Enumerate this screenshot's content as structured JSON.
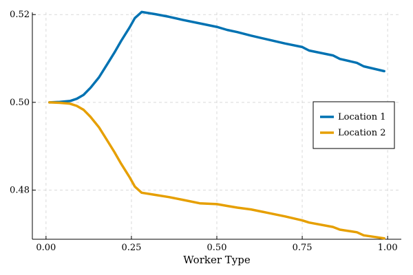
{
  "chart_data": {
    "type": "line",
    "xlabel": "Worker Type",
    "ylabel": "",
    "xlim": [
      -0.04,
      1.04
    ],
    "ylim": [
      0.4688,
      0.5205
    ],
    "xticks": [
      0.0,
      0.25,
      0.5,
      0.75,
      1.0
    ],
    "xtick_labels": [
      "0.00",
      "0.25",
      "0.50",
      "0.75",
      "1.00"
    ],
    "yticks": [
      0.48,
      0.5,
      0.52
    ],
    "ytick_labels": [
      "0.48",
      "0.50",
      "0.52"
    ],
    "grid": true,
    "legend_position": "right",
    "series": [
      {
        "name": "Location 1",
        "color": "#0072b2",
        "x": [
          0.01,
          0.04,
          0.07,
          0.09,
          0.11,
          0.13,
          0.155,
          0.18,
          0.2,
          0.22,
          0.245,
          0.26,
          0.28,
          0.32,
          0.36,
          0.4,
          0.45,
          0.5,
          0.53,
          0.56,
          0.6,
          0.65,
          0.7,
          0.75,
          0.77,
          0.84,
          0.86,
          0.91,
          0.93,
          0.99
        ],
        "y": [
          0.5,
          0.5001,
          0.5003,
          0.5008,
          0.5017,
          0.5033,
          0.5057,
          0.5088,
          0.5113,
          0.514,
          0.5171,
          0.5192,
          0.5206,
          0.5201,
          0.5195,
          0.5188,
          0.518,
          0.5172,
          0.5165,
          0.516,
          0.5152,
          0.5143,
          0.5134,
          0.5126,
          0.5118,
          0.5107,
          0.5099,
          0.509,
          0.5082,
          0.5071
        ]
      },
      {
        "name": "Location 2",
        "color": "#e69f00",
        "x": [
          0.01,
          0.04,
          0.07,
          0.09,
          0.11,
          0.13,
          0.155,
          0.18,
          0.2,
          0.22,
          0.245,
          0.26,
          0.28,
          0.32,
          0.36,
          0.4,
          0.45,
          0.5,
          0.53,
          0.56,
          0.6,
          0.65,
          0.7,
          0.75,
          0.77,
          0.84,
          0.86,
          0.91,
          0.93,
          0.99
        ],
        "y": [
          0.5,
          0.4999,
          0.4997,
          0.4992,
          0.4983,
          0.4967,
          0.4943,
          0.4912,
          0.4887,
          0.486,
          0.4829,
          0.4808,
          0.4794,
          0.4789,
          0.4784,
          0.4778,
          0.477,
          0.4768,
          0.4764,
          0.476,
          0.4756,
          0.4748,
          0.474,
          0.4731,
          0.4726,
          0.4716,
          0.471,
          0.4704,
          0.4697,
          0.469
        ]
      }
    ]
  }
}
